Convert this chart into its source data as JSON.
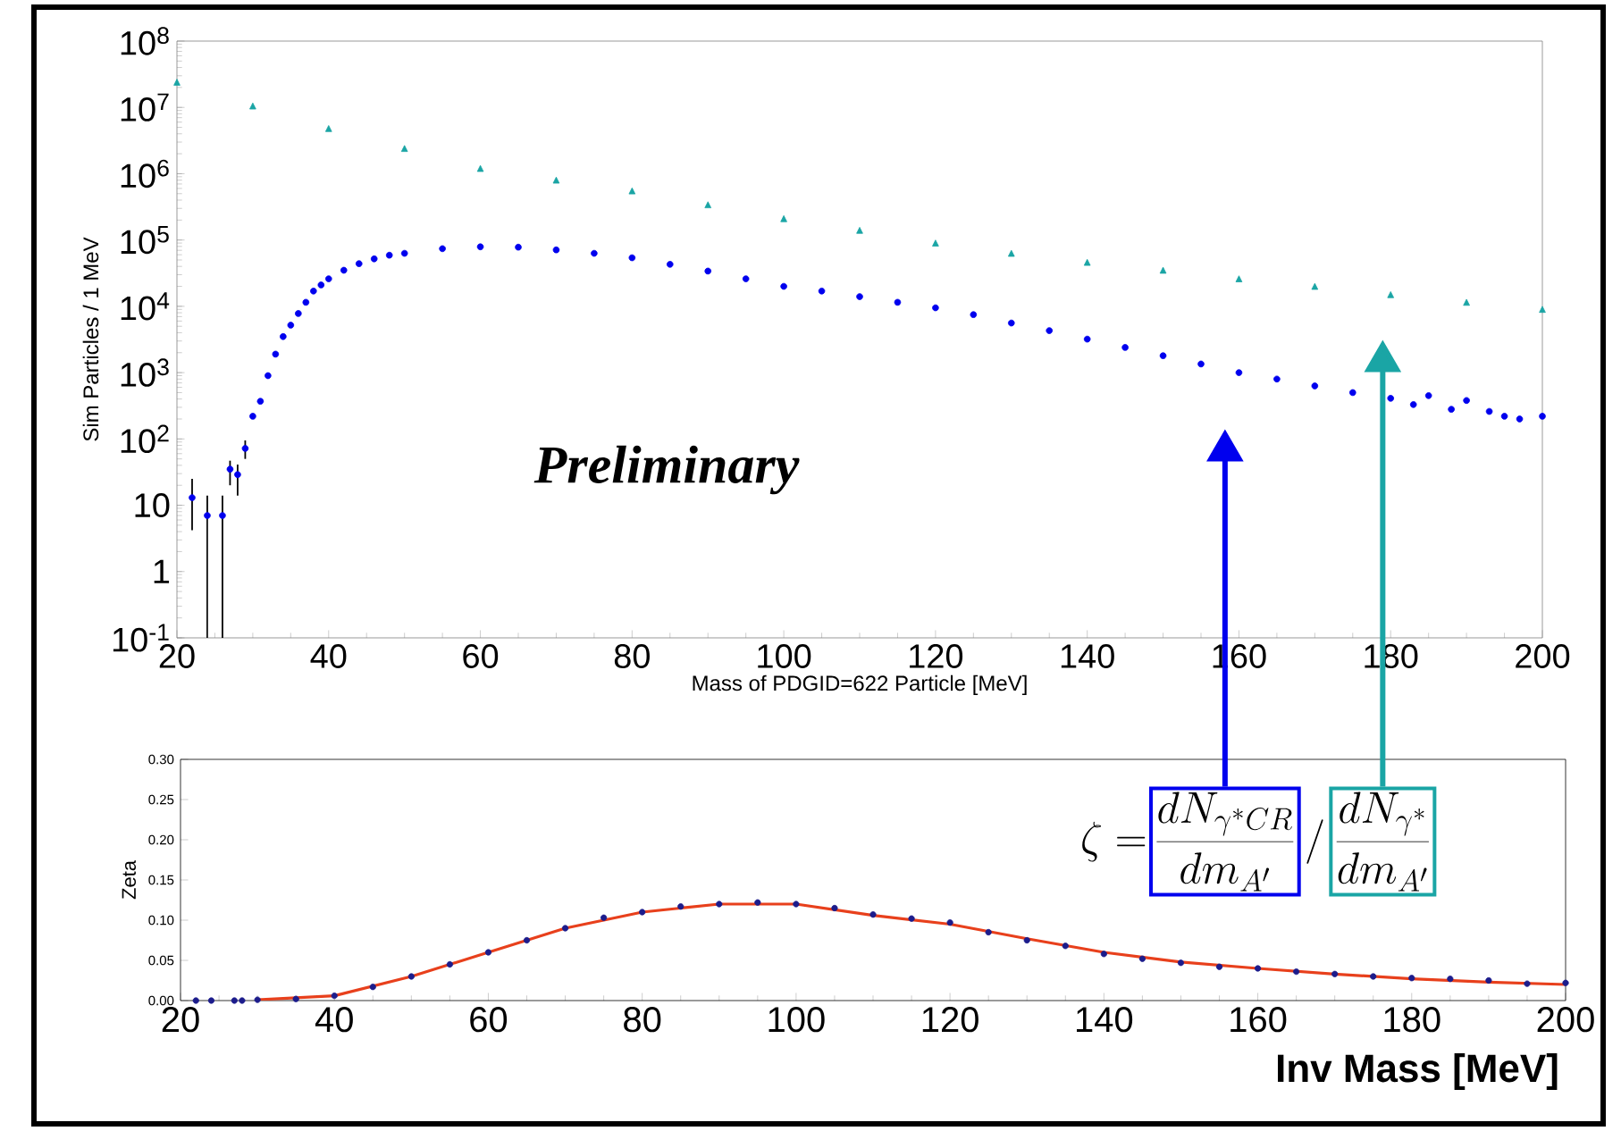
{
  "chart_data": [
    {
      "type": "scatter",
      "xlabel": "Mass of PDGID=622 Particle [MeV]",
      "ylabel": "Sim Particles / 1 MeV",
      "log": "y",
      "xlim": [
        20,
        200
      ],
      "xticks": [
        20,
        40,
        60,
        80,
        100,
        120,
        140,
        160,
        180,
        200
      ],
      "ylim": [
        0.1,
        100000000
      ],
      "yticks": [
        {
          "value": 0.1,
          "label": "10$^{-1}$"
        },
        1,
        10,
        {
          "value": 100,
          "label": "10$^{2}$"
        },
        {
          "value": 1000,
          "label": "10$^{3}$"
        },
        {
          "value": 10000,
          "label": "10$^{4}$"
        },
        {
          "value": 100000,
          "label": "10$^{5}$"
        },
        {
          "value": 1000000,
          "label": "10$^{6}$"
        },
        {
          "value": 10000000,
          "label": "10$^{7}$"
        },
        {
          "value": 100000000,
          "label": "10$^{8}$"
        }
      ],
      "annotations": [
        "Preliminary"
      ],
      "series": [
        {
          "color": "#1aa5a5",
          "marker": "triangle",
          "x": [
            20,
            30,
            40,
            50,
            60,
            70,
            80,
            90,
            100,
            110,
            120,
            130,
            140,
            150,
            160,
            170,
            180,
            190,
            200
          ],
          "values": [
            24000000,
            10500000,
            4800000,
            2400000,
            1200000,
            800000,
            550000,
            340000,
            210000,
            140000,
            90000,
            63000,
            46000,
            35000,
            26000,
            20000,
            15000,
            11500,
            9000
          ]
        },
        {
          "color": "#0000ee",
          "marker": "circle",
          "x": [
            22,
            24,
            26,
            27,
            28,
            29,
            30,
            31,
            32,
            33,
            34,
            35,
            36,
            37,
            38,
            39,
            40,
            42,
            44,
            46,
            48,
            50,
            55,
            60,
            65,
            70,
            75,
            80,
            85,
            90,
            95,
            100,
            105,
            110,
            115,
            120,
            125,
            130,
            135,
            140,
            145,
            150,
            155,
            160,
            165,
            170,
            175,
            180,
            183,
            185,
            188,
            190,
            193,
            195,
            197,
            200
          ],
          "values": [
            13,
            7,
            7,
            35,
            29,
            72,
            220,
            370,
            900,
            1900,
            3500,
            5200,
            7800,
            11500,
            17000,
            21000,
            26000,
            35000,
            44000,
            52000,
            59000,
            63000,
            74000,
            79000,
            78000,
            71000,
            63000,
            54000,
            43000,
            34000,
            26000,
            20000,
            17000,
            14000,
            11500,
            9500,
            7500,
            5600,
            4300,
            3200,
            2400,
            1800,
            1350,
            1000,
            800,
            630,
            500,
            410,
            330,
            450,
            280,
            380,
            260,
            220,
            200,
            220
          ],
          "errors": [
            [
              4.2,
              25
            ],
            [
              0.1,
              14
            ],
            [
              0.1,
              14
            ],
            [
              20,
              47
            ],
            [
              14,
              41
            ],
            [
              50,
              95
            ],
            null,
            null,
            null,
            null,
            null,
            null,
            null,
            null,
            null,
            null,
            null,
            null,
            null,
            null,
            null,
            null,
            null,
            null,
            null,
            null,
            null,
            null,
            null,
            null,
            null,
            null,
            null,
            null,
            null,
            null,
            null,
            null,
            null,
            null,
            null,
            null,
            null,
            null,
            null,
            null,
            null,
            null,
            null,
            null,
            null,
            null,
            null,
            null,
            null,
            null
          ]
        }
      ]
    },
    {
      "type": "scatter",
      "xlabel": "Inv Mass [MeV]",
      "ylabel": "Zeta",
      "xlim": [
        20,
        200
      ],
      "xticks": [
        20,
        40,
        60,
        80,
        100,
        120,
        140,
        160,
        180,
        200
      ],
      "ylim": [
        0,
        0.3
      ],
      "yticks": [
        {
          "value": 0,
          "label": "0.00"
        },
        {
          "value": 0.05,
          "label": "0.05"
        },
        {
          "value": 0.1,
          "label": "0.10"
        },
        {
          "value": 0.15,
          "label": "0.15"
        },
        {
          "value": 0.2,
          "label": "0.20"
        },
        {
          "value": 0.25,
          "label": "0.25"
        },
        {
          "value": 0.3,
          "label": "0.30"
        }
      ],
      "annotations": [
        "\\zeta =",
        "\\frac{dN_{\\gamma^{*}CR}}{dm_{A'}}",
        "/",
        "\\frac{dN_{\\gamma^{*}}}{dm_{A'}}"
      ],
      "series": [
        {
          "color": "#1c1c8c",
          "marker": "circle",
          "x": [
            22,
            24,
            27,
            28,
            30,
            35,
            40,
            45,
            50,
            55,
            60,
            65,
            70,
            75,
            80,
            85,
            90,
            95,
            100,
            105,
            110,
            115,
            120,
            125,
            130,
            135,
            140,
            145,
            150,
            155,
            160,
            165,
            170,
            175,
            180,
            185,
            190,
            195,
            200
          ],
          "values": [
            0,
            0,
            0,
            0,
            0.001,
            0.002,
            0.006,
            0.017,
            0.03,
            0.045,
            0.06,
            0.075,
            0.09,
            0.103,
            0.11,
            0.117,
            0.12,
            0.122,
            0.12,
            0.115,
            0.107,
            0.102,
            0.097,
            0.085,
            0.075,
            0.068,
            0.058,
            0.052,
            0.047,
            0.042,
            0.04,
            0.036,
            0.033,
            0.03,
            0.028,
            0.027,
            0.025,
            0.021,
            0.022
          ]
        },
        {
          "type": "line",
          "color": "#e8401c",
          "x": [
            30,
            40,
            50,
            60,
            70,
            80,
            90,
            100,
            110,
            120,
            130,
            140,
            150,
            160,
            170,
            180,
            190,
            200
          ],
          "values": [
            0.001,
            0.006,
            0.03,
            0.06,
            0.09,
            0.11,
            0.12,
            0.12,
            0.106,
            0.095,
            0.077,
            0.06,
            0.048,
            0.04,
            0.033,
            0.027,
            0.023,
            0.02
          ]
        }
      ]
    }
  ]
}
